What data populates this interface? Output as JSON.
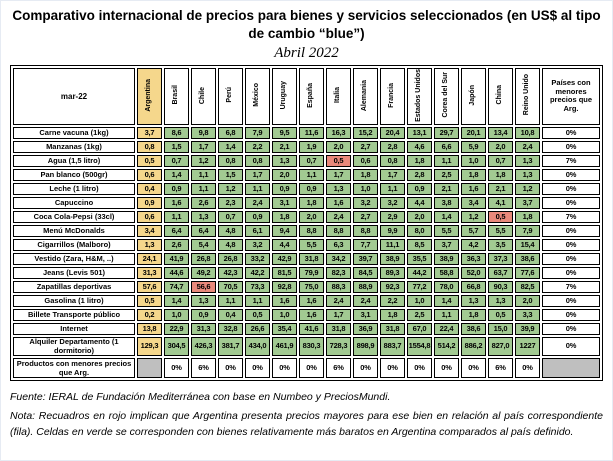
{
  "page": {
    "title": "Comparativo internacional de precios para bienes y servicios seleccionados (en US$ al tipo de cambio “blue”)",
    "subtitle": "Abril 2022"
  },
  "table": {
    "corner_label": "mar-22",
    "countries": [
      "Argentina",
      "Brasil",
      "Chile",
      "Perú",
      "México",
      "Uruguay",
      "España",
      "Italia",
      "Alemania",
      "Francia",
      "Estados Unidos",
      "Corea del Sur",
      "Japón",
      "China",
      "Reino Unido"
    ],
    "last_column_header": "Países con menores precios que Arg.",
    "rows": [
      {
        "label": "Carne vacuna (1kg)",
        "values": [
          "3,7",
          "8,6",
          "9,8",
          "6,8",
          "7,9",
          "9,5",
          "11,6",
          "16,3",
          "15,2",
          "20,4",
          "13,1",
          "29,7",
          "20,1",
          "13,4",
          "10,8"
        ],
        "pct": "0%",
        "red_cols": []
      },
      {
        "label": "Manzanas (1kg)",
        "values": [
          "0,8",
          "1,5",
          "1,7",
          "1,4",
          "2,2",
          "2,1",
          "1,9",
          "2,0",
          "2,7",
          "2,8",
          "4,6",
          "6,6",
          "5,9",
          "2,0",
          "2,4"
        ],
        "pct": "0%",
        "red_cols": []
      },
      {
        "label": "Agua (1,5 litro)",
        "values": [
          "0,5",
          "0,7",
          "1,2",
          "0,8",
          "0,8",
          "1,3",
          "0,7",
          "0,5",
          "0,6",
          "0,8",
          "1,8",
          "1,1",
          "1,0",
          "0,7",
          "1,3"
        ],
        "pct": "7%",
        "red_cols": [
          7
        ]
      },
      {
        "label": "Pan blanco (500gr)",
        "values": [
          "0,6",
          "1,4",
          "1,1",
          "1,5",
          "1,7",
          "2,0",
          "1,1",
          "1,7",
          "1,8",
          "1,7",
          "2,8",
          "2,5",
          "1,8",
          "1,8",
          "1,3"
        ],
        "pct": "0%",
        "red_cols": []
      },
      {
        "label": "Leche (1 litro)",
        "values": [
          "0,4",
          "0,9",
          "1,1",
          "1,2",
          "1,1",
          "0,9",
          "0,9",
          "1,3",
          "1,0",
          "1,1",
          "0,9",
          "2,1",
          "1,6",
          "2,1",
          "1,2"
        ],
        "pct": "0%",
        "red_cols": []
      },
      {
        "label": "Capuccino",
        "values": [
          "0,9",
          "1,6",
          "2,6",
          "2,3",
          "2,4",
          "3,1",
          "1,8",
          "1,6",
          "3,2",
          "3,2",
          "4,4",
          "3,8",
          "3,4",
          "4,1",
          "3,7"
        ],
        "pct": "0%",
        "red_cols": []
      },
      {
        "label": "Coca Cola-Pepsi (33cl)",
        "values": [
          "0,6",
          "1,1",
          "1,3",
          "0,7",
          "0,9",
          "1,8",
          "2,0",
          "2,4",
          "2,7",
          "2,9",
          "2,0",
          "1,4",
          "1,2",
          "0,5",
          "1,8"
        ],
        "pct": "7%",
        "red_cols": [
          13
        ]
      },
      {
        "label": "Menú McDonalds",
        "values": [
          "3,4",
          "6,4",
          "6,4",
          "4,8",
          "6,1",
          "9,4",
          "8,8",
          "8,8",
          "8,8",
          "9,9",
          "8,0",
          "5,5",
          "5,7",
          "5,5",
          "7,9"
        ],
        "pct": "0%",
        "red_cols": []
      },
      {
        "label": "Cigarrillos (Malboro)",
        "values": [
          "1,3",
          "2,6",
          "5,4",
          "4,8",
          "3,2",
          "4,4",
          "5,5",
          "6,3",
          "7,7",
          "11,1",
          "8,5",
          "3,7",
          "4,2",
          "3,5",
          "15,4"
        ],
        "pct": "0%",
        "red_cols": []
      },
      {
        "label": "Vestido (Zara, H&M, ..)",
        "values": [
          "24,1",
          "41,9",
          "26,8",
          "26,8",
          "33,2",
          "42,9",
          "31,8",
          "34,2",
          "39,7",
          "38,9",
          "35,5",
          "38,9",
          "36,3",
          "37,3",
          "38,6"
        ],
        "pct": "0%",
        "red_cols": []
      },
      {
        "label": "Jeans (Levis 501)",
        "values": [
          "31,3",
          "44,6",
          "49,2",
          "42,3",
          "42,2",
          "81,5",
          "79,9",
          "82,3",
          "84,5",
          "89,3",
          "44,2",
          "58,8",
          "52,0",
          "63,7",
          "77,6"
        ],
        "pct": "0%",
        "red_cols": []
      },
      {
        "label": "Zapatillas deportivas",
        "values": [
          "57,6",
          "74,7",
          "56,6",
          "70,5",
          "73,3",
          "92,8",
          "75,0",
          "88,3",
          "88,9",
          "92,3",
          "77,2",
          "78,0",
          "66,8",
          "90,3",
          "82,5"
        ],
        "pct": "7%",
        "red_cols": [
          2
        ]
      },
      {
        "label": "Gasolina (1 litro)",
        "values": [
          "0,5",
          "1,4",
          "1,3",
          "1,1",
          "1,1",
          "1,6",
          "1,6",
          "2,4",
          "2,4",
          "2,2",
          "1,0",
          "1,4",
          "1,3",
          "1,3",
          "2,0"
        ],
        "pct": "0%",
        "red_cols": []
      },
      {
        "label": "Billete Transporte público",
        "values": [
          "0,2",
          "1,0",
          "0,9",
          "0,4",
          "0,5",
          "1,0",
          "1,6",
          "1,7",
          "3,1",
          "1,8",
          "2,5",
          "1,1",
          "1,8",
          "0,5",
          "3,3"
        ],
        "pct": "0%",
        "red_cols": []
      },
      {
        "label": "Internet",
        "values": [
          "13,8",
          "22,9",
          "31,3",
          "32,8",
          "26,6",
          "35,4",
          "41,6",
          "31,8",
          "36,9",
          "31,8",
          "67,0",
          "22,4",
          "38,6",
          "15,0",
          "39,9"
        ],
        "pct": "0%",
        "red_cols": []
      },
      {
        "label": "Alquiler Departamento (1 dormitorio)",
        "values": [
          "129,3",
          "304,5",
          "426,3",
          "381,7",
          "434,0",
          "461,9",
          "830,3",
          "728,3",
          "898,9",
          "883,7",
          "1554,8",
          "514,2",
          "886,2",
          "827,0",
          "1227"
        ],
        "pct": "0%",
        "red_cols": []
      }
    ],
    "bottom_row": {
      "label": "Productos con menores precios que Arg.",
      "values": [
        "",
        "0%",
        "6%",
        "0%",
        "0%",
        "0%",
        "0%",
        "6%",
        "0%",
        "0%",
        "0%",
        "0%",
        "0%",
        "6%",
        "0%"
      ]
    }
  },
  "footer": {
    "source": "Fuente: IERAL de Fundación Mediterránea con base en Numbeo y PreciosMundi.",
    "note": "Nota: Recuadros en rojo implican que Argentina presenta precios mayores para ese bien en relación al país correspondiente (fila). Celdas en verde se corresponden con bienes relativamente más baratos en Argentina comparados al país definido."
  },
  "colors": {
    "argentina_highlight": "#f5d78c",
    "cheaper_than_argentina_green": "#a2ca92",
    "more_expensive_red": "#e9897b",
    "empty_gray": "#bfbfbf"
  }
}
